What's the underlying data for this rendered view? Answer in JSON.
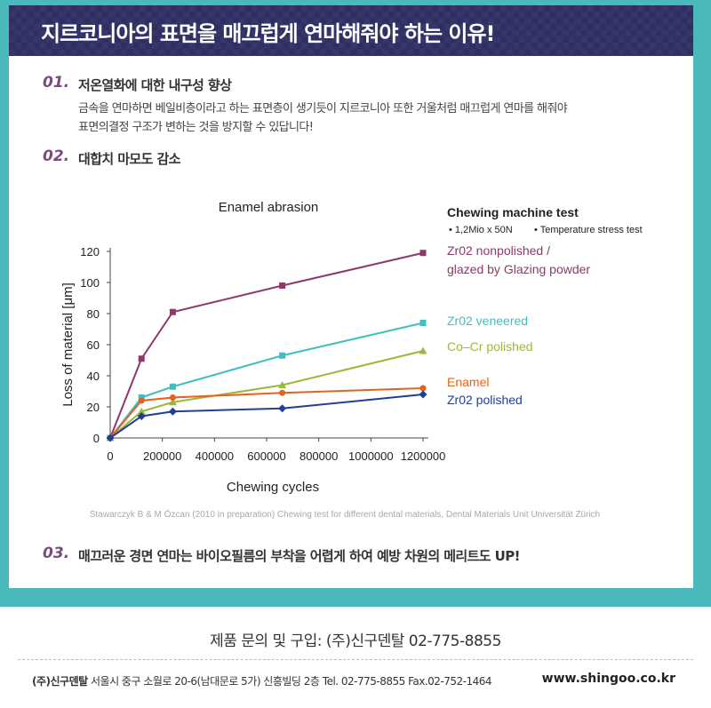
{
  "header": {
    "title": "지르코니아의 표면을 매끄럽게 연마해줘야 하는 이유!"
  },
  "sections": [
    {
      "num": "01.",
      "title": "저온열화에 대한 내구성 향상",
      "lines": [
        "금속을 연마하면 베일비층이라고 하는 표면층이 생기듯이 지르코니아 또한 거울처럼 매끄럽게 연마를 해줘야",
        "표면의결정 구조가 변하는 것을 방지할 수 있답니다!"
      ]
    },
    {
      "num": "02.",
      "title": "대합치 마모도 감소"
    },
    {
      "num": "03.",
      "title": "매끄러운 경면 연마는 바이오필름의 부착을 어렵게 하여 예방 차원의 메리트도 UP!"
    }
  ],
  "chart_data": {
    "type": "line",
    "title": "Enamel abrasion",
    "xlabel": "Chewing cycles",
    "ylabel": "Loss of material [μm]",
    "xlim": [
      0,
      1200000
    ],
    "ylim": [
      0,
      120
    ],
    "xticks": [
      0,
      200000,
      400000,
      600000,
      800000,
      1000000,
      1200000
    ],
    "xtick_labels": [
      "0",
      "200000",
      "400000",
      "600000",
      "800000",
      "1000000",
      "1200000"
    ],
    "yticks": [
      0,
      20,
      40,
      60,
      80,
      100,
      120
    ],
    "legend_title": "Chewing machine test",
    "legend_subtitle": [
      "• 1,2Mio x 50N",
      "• Temperature stress test"
    ],
    "source": "Stawarczyk B & M Özcan (2010 in preparation) Chewing test for different dental materials, Dental Materials Unit Universität Zürich",
    "series": [
      {
        "name": "Zr02 nonpolished / glazed by Glazing powder",
        "label_lines": [
          "Zr02 nonpolished /",
          "glazed by Glazing powder"
        ],
        "color": "#8b3a6b",
        "marker": "square",
        "x": [
          0,
          120000,
          240000,
          660000,
          1200000
        ],
        "y": [
          0,
          51,
          81,
          98,
          119
        ]
      },
      {
        "name": "Zr02 veneered",
        "label_lines": [
          "Zr02 veneered"
        ],
        "color": "#3fbfbf",
        "marker": "square",
        "x": [
          0,
          120000,
          240000,
          660000,
          1200000
        ],
        "y": [
          0,
          26,
          33,
          53,
          74
        ]
      },
      {
        "name": "Co–Cr polished",
        "label_lines": [
          "Co–Cr polished"
        ],
        "color": "#9bb83a",
        "marker": "triangle",
        "x": [
          0,
          120000,
          240000,
          660000,
          1200000
        ],
        "y": [
          0,
          17,
          23,
          34,
          56
        ]
      },
      {
        "name": "Enamel",
        "label_lines": [
          "Enamel"
        ],
        "color": "#e8601c",
        "marker": "circle",
        "x": [
          0,
          120000,
          240000,
          660000,
          1200000
        ],
        "y": [
          0,
          24,
          26,
          29,
          32
        ]
      },
      {
        "name": "Zr02 polished",
        "label_lines": [
          "Zr02 polished"
        ],
        "color": "#1f3f99",
        "marker": "diamond",
        "x": [
          0,
          120000,
          240000,
          660000,
          1200000
        ],
        "y": [
          0,
          14,
          17,
          19,
          28
        ]
      }
    ]
  },
  "footer": {
    "contact": "제품 문의 및 구입: (주)신구덴탈 02-775-8855",
    "company": "(주)신구덴탈",
    "address": " 서울시 중구 소월로 20-6(남대문로 5가) 신흥빌딩 2층 Tel. 02-775-8855  Fax.02-752-1464",
    "website": "www.shingoo.co.kr"
  }
}
